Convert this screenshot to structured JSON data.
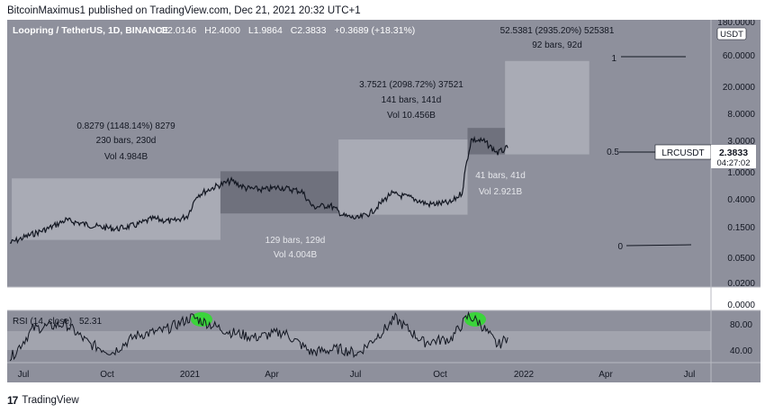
{
  "header": {
    "published": "BitcoinMaximus1 published on TradingView.com, Dec 21, 2021 20:32 UTC+1"
  },
  "symbol_bar": {
    "symbol": "Loopring / TetherUS, 1D, BINANCE",
    "o_label": "O",
    "o_value": "2.0146",
    "h_label": "H",
    "h_value": "2.4000",
    "l_label": "L",
    "l_value": "1.9864",
    "c_label": "C",
    "c_value": "2.3833",
    "change": "+0.3689 (+18.31%)"
  },
  "price_axis": {
    "labels": [
      "180.0000",
      "60.0000",
      "20.0000",
      "8.0000",
      "3.0000",
      "1.0000",
      "0.4000",
      "0.1500",
      "0.0500",
      "0.0200",
      "0.0000"
    ],
    "currency": "USDT",
    "last_symbol": "LRCUSDT",
    "last_price": "2.3833",
    "countdown": "04:27:02"
  },
  "rsi_axis": {
    "labels": [
      "80.00",
      "40.00"
    ]
  },
  "time_axis": {
    "labels": [
      "Jul",
      "Oct",
      "2021",
      "Apr",
      "Jul",
      "Oct",
      "2022",
      "Apr",
      "Jul"
    ]
  },
  "rsi_legend": {
    "label": "RSI (14, close)",
    "value": "52.31"
  },
  "annotations": {
    "box1": {
      "line1": "0.8279 (1148.14%) 8279",
      "line2": "230 bars, 230d",
      "line3": "Vol 4.984B"
    },
    "box2": {
      "line1": "129 bars, 129d",
      "line2": "Vol 4.004B"
    },
    "box3": {
      "line1": "3.7521 (2098.72%) 37521",
      "line2": "141 bars, 141d",
      "line3": "Vol 10.456B"
    },
    "box4": {
      "line1": "41 bars, 41d",
      "line2": "Vol 2.921B"
    },
    "box5": {
      "line1": "52.5381 (2935.20%) 525381",
      "line2": "92 bars, 92d"
    },
    "fib_1": "1",
    "fib_05": "0.5",
    "fib_0": "0"
  },
  "footer": {
    "brand": "TradingView"
  },
  "colors": {
    "background": "#8e909c",
    "box_light": "#a9abb5",
    "box_dark": "#6f717d",
    "price_line": "#131722",
    "rsi_band": "#a2a4ae",
    "rsi_highlight": "#3bd43b"
  },
  "chart_data": {
    "type": "line",
    "scale": "log",
    "series": [
      {
        "values": [
          [
            "2020-06-25",
            0.085
          ],
          [
            "2020-07-15",
            0.11
          ],
          [
            "2020-08-05",
            0.14
          ],
          [
            "2020-08-25",
            0.19
          ],
          [
            "2020-09-10",
            0.17
          ],
          [
            "2020-09-30",
            0.15
          ],
          [
            "2020-10-20",
            0.14
          ],
          [
            "2020-11-10",
            0.16
          ],
          [
            "2020-11-28",
            0.2
          ],
          [
            "2020-12-20",
            0.18
          ],
          [
            "2021-01-05",
            0.22
          ],
          [
            "2021-01-15",
            0.45
          ],
          [
            "2021-02-05",
            0.62
          ],
          [
            "2021-02-22",
            0.75
          ],
          [
            "2021-03-10",
            0.58
          ],
          [
            "2021-03-30",
            0.55
          ],
          [
            "2021-04-15",
            0.6
          ],
          [
            "2021-05-10",
            0.52
          ],
          [
            "2021-05-22",
            0.3
          ],
          [
            "2021-06-10",
            0.32
          ],
          [
            "2021-06-25",
            0.22
          ],
          [
            "2021-07-10",
            0.2
          ],
          [
            "2021-07-25",
            0.25
          ],
          [
            "2021-08-15",
            0.48
          ],
          [
            "2021-09-05",
            0.42
          ],
          [
            "2021-09-25",
            0.33
          ],
          [
            "2021-10-20",
            0.35
          ],
          [
            "2021-11-01",
            0.5
          ],
          [
            "2021-11-05",
            1.2
          ],
          [
            "2021-11-11",
            3.2
          ],
          [
            "2021-11-25",
            3.0
          ],
          [
            "2021-12-10",
            2.0
          ],
          [
            "2021-12-21",
            2.38
          ]
        ]
      }
    ],
    "rsi": [
      [
        "2020-06-25",
        20
      ],
      [
        "2020-07-20",
        65
      ],
      [
        "2020-08-25",
        72
      ],
      [
        "2020-09-20",
        42
      ],
      [
        "2020-10-15",
        30
      ],
      [
        "2020-11-10",
        55
      ],
      [
        "2020-12-10",
        62
      ],
      [
        "2021-01-10",
        82
      ],
      [
        "2021-02-20",
        60
      ],
      [
        "2021-03-20",
        52
      ],
      [
        "2021-04-20",
        60
      ],
      [
        "2021-05-20",
        30
      ],
      [
        "2021-06-20",
        35
      ],
      [
        "2021-07-10",
        28
      ],
      [
        "2021-08-10",
        66
      ],
      [
        "2021-08-20",
        80
      ],
      [
        "2021-09-20",
        45
      ],
      [
        "2021-10-20",
        50
      ],
      [
        "2021-11-08",
        84
      ],
      [
        "2021-11-20",
        74
      ],
      [
        "2021-12-10",
        40
      ],
      [
        "2021-12-21",
        52
      ]
    ],
    "annotation_boxes": [
      {
        "from": "2020-06-27",
        "to": "2021-02-10",
        "low": 0.095,
        "high": 0.82
      },
      {
        "from": "2021-02-10",
        "to": "2021-06-19",
        "low": 0.24,
        "high": 1.05
      },
      {
        "from": "2021-06-19",
        "to": "2021-11-07",
        "low": 0.23,
        "high": 3.2
      },
      {
        "from": "2021-11-07",
        "to": "2021-12-18",
        "low": 1.9,
        "high": 4.8
      },
      {
        "from": "2021-12-18",
        "to": "2022-03-20",
        "low": 1.9,
        "high": 50
      }
    ],
    "xlabel": "",
    "ylabel": ""
  }
}
